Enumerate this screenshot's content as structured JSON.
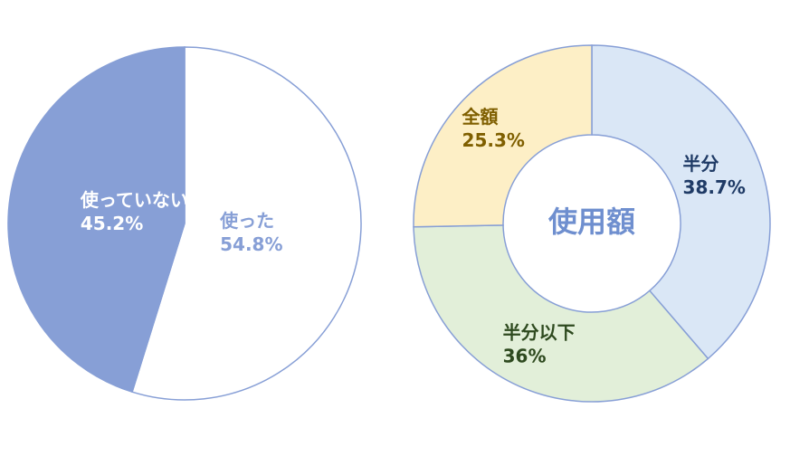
{
  "chart_data": [
    {
      "type": "pie",
      "categories": [
        "使った",
        "使っていない"
      ],
      "values": [
        54.8,
        45.2
      ],
      "value_labels": [
        "54.8%",
        "45.2%"
      ],
      "colors": [
        "#ffffff",
        "#879fd6"
      ],
      "label_colors": [
        "#879fd6",
        "#ffffff"
      ],
      "stroke": "#879fd6"
    },
    {
      "type": "donut",
      "center_label": "使用額",
      "categories": [
        "半分",
        "半分以下",
        "全額"
      ],
      "values": [
        38.7,
        36,
        25.3
      ],
      "value_labels": [
        "38.7%",
        "36%",
        "25.3%"
      ],
      "colors": [
        "#dae7f6",
        "#e2efd9",
        "#fdefc6"
      ],
      "label_colors": [
        "#1f3b66",
        "#2e4a1f",
        "#7f5f00"
      ],
      "stroke": "#879fd6",
      "center_color": "#6f8fcf"
    }
  ]
}
